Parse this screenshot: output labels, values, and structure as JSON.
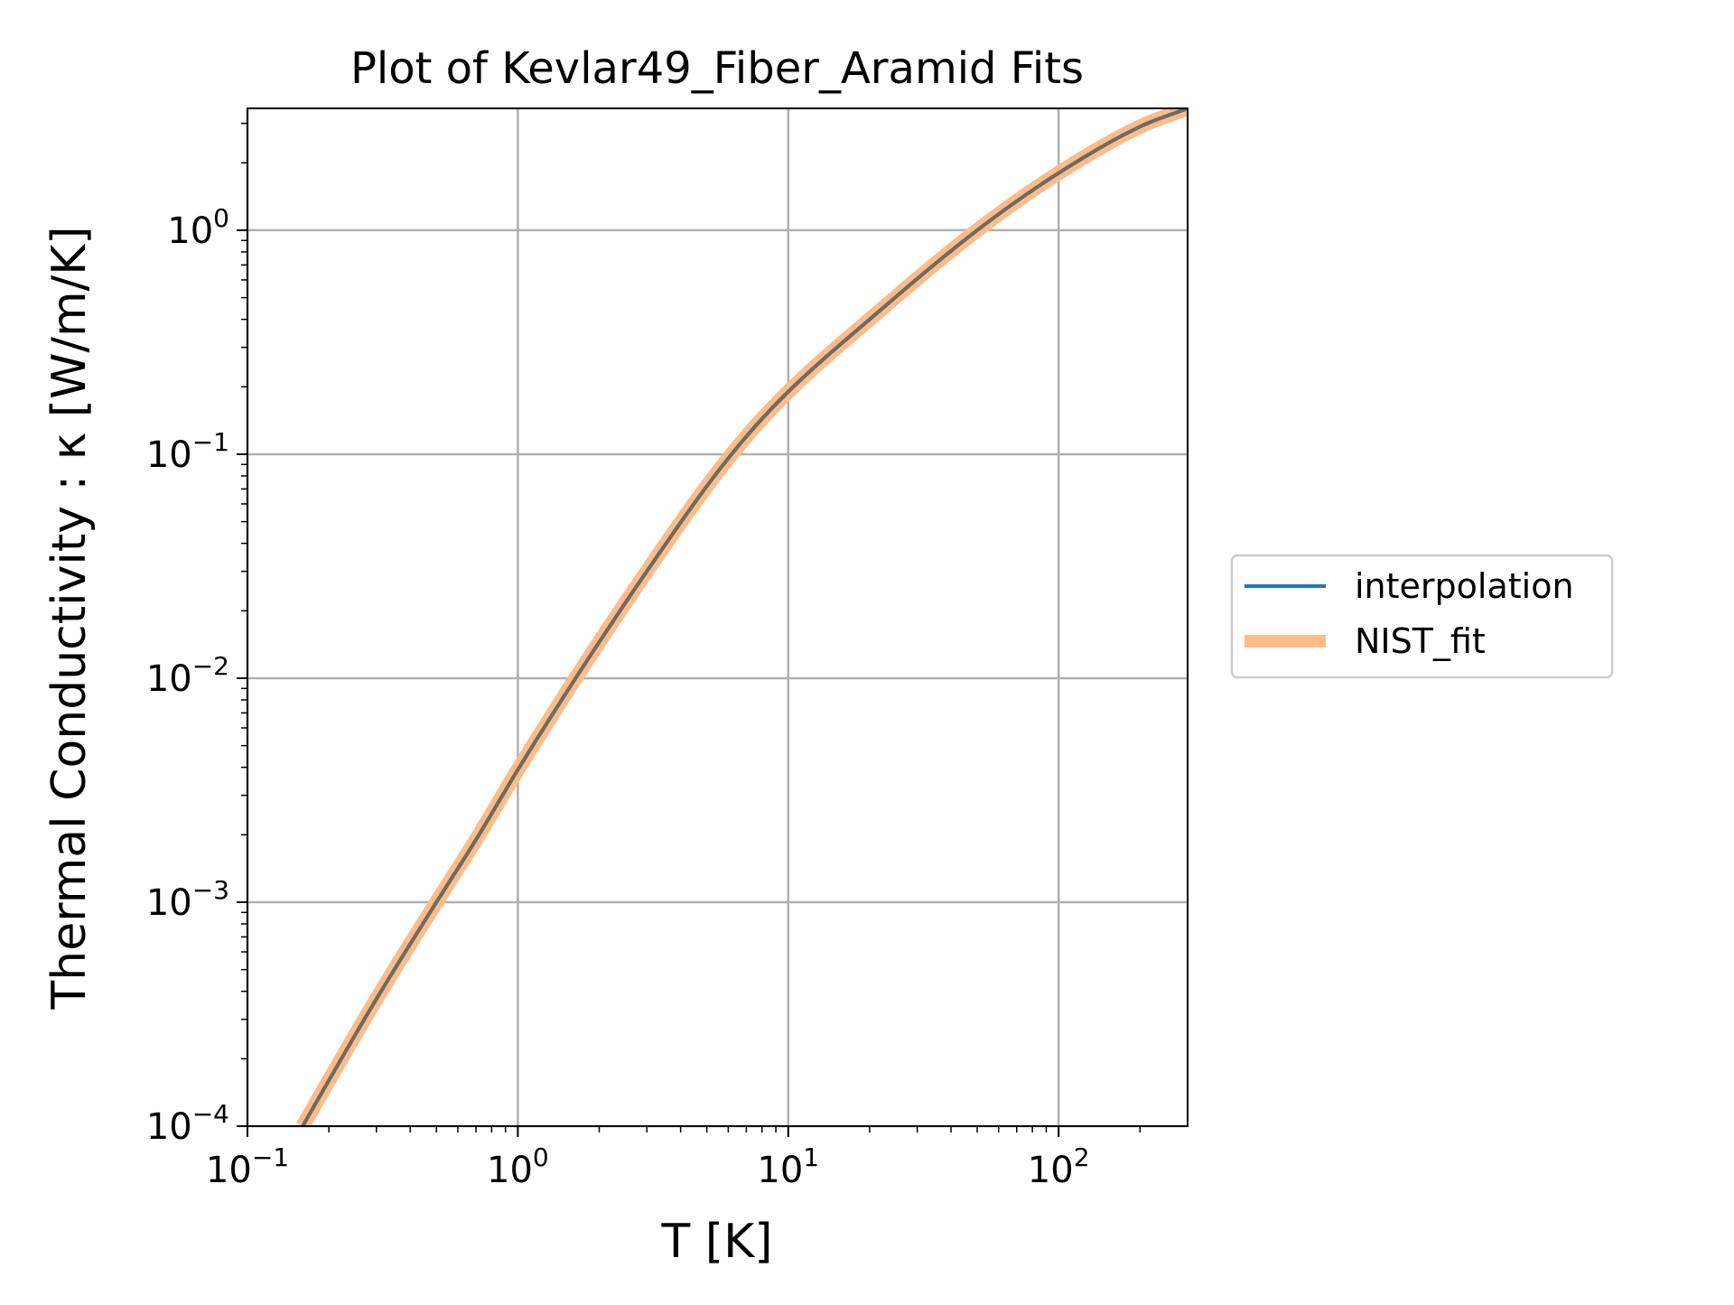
{
  "chart_data": {
    "type": "line",
    "title": "Plot of Kevlar49_Fiber_Aramid Fits",
    "xlabel": "T [K]",
    "ylabel": "Thermal Conductivity : κ [W/m/K]",
    "xscale": "log",
    "yscale": "log",
    "xlim": [
      0.1,
      300
    ],
    "ylim": [
      0.0001,
      3.5
    ],
    "grid": true,
    "legend_position": "outside-right",
    "x_ticks": [
      {
        "value": 0.1,
        "base": "10",
        "exp": "−1"
      },
      {
        "value": 1,
        "base": "10",
        "exp": "0"
      },
      {
        "value": 10,
        "base": "10",
        "exp": "1"
      },
      {
        "value": 100,
        "base": "10",
        "exp": "2"
      }
    ],
    "y_ticks": [
      {
        "value": 0.0001,
        "base": "10",
        "exp": "−4"
      },
      {
        "value": 0.001,
        "base": "10",
        "exp": "−3"
      },
      {
        "value": 0.01,
        "base": "10",
        "exp": "−2"
      },
      {
        "value": 0.1,
        "base": "10",
        "exp": "−1"
      },
      {
        "value": 1,
        "base": "10",
        "exp": "0"
      }
    ],
    "series": [
      {
        "name": "interpolation",
        "color": "#1f77b4",
        "x": [
          0.16,
          0.2,
          0.3,
          0.5,
          0.7,
          1,
          1.5,
          2,
          3,
          5,
          7,
          10,
          20,
          50,
          100,
          200,
          300
        ],
        "y": [
          0.0001,
          0.00016,
          0.00037,
          0.001,
          0.0019,
          0.0039,
          0.0085,
          0.0145,
          0.03,
          0.072,
          0.12,
          0.19,
          0.4,
          1.0,
          1.8,
          2.9,
          3.5
        ]
      },
      {
        "name": "NIST_fit",
        "color": "#ffbb88",
        "x": [
          0.16,
          0.2,
          0.3,
          0.5,
          0.7,
          1,
          1.5,
          2,
          3,
          5,
          7,
          10,
          20,
          50,
          100,
          200,
          300
        ],
        "y": [
          0.0001,
          0.00016,
          0.00037,
          0.001,
          0.0019,
          0.0039,
          0.0085,
          0.0145,
          0.03,
          0.072,
          0.12,
          0.19,
          0.4,
          1.0,
          1.8,
          2.9,
          3.5
        ]
      }
    ]
  }
}
